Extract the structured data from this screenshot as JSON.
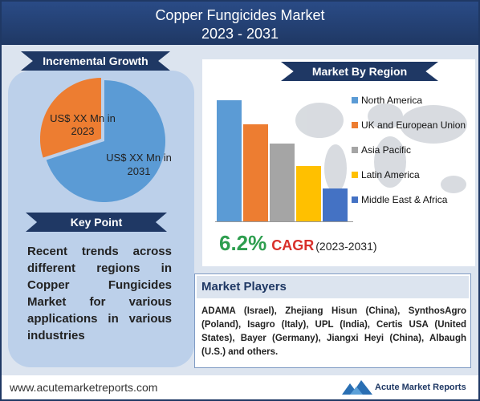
{
  "header": {
    "title_line1": "Copper Fungicides Market",
    "title_line2": "2023 - 2031"
  },
  "incremental_growth": {
    "label": "Incremental Growth",
    "slice_2023_label": "US$ XX Mn in 2023",
    "slice_2031_label": "US$ XX Mn in 2031"
  },
  "market_by_region": {
    "label": "Market By Region",
    "regions": [
      "North America",
      "UK and European Union",
      "Asia Pacific",
      "Latin America",
      "Middle East & Africa"
    ],
    "colors": [
      "#5b9bd5",
      "#ed7d31",
      "#a5a5a5",
      "#ffc000",
      "#4472c4"
    ]
  },
  "key_point": {
    "label": "Key Point",
    "text": "Recent trends across different regions in Copper Fungicides Market for various applications in various industries"
  },
  "cagr": {
    "value": "6.2%",
    "label": "CAGR",
    "years": "(2023-2031)"
  },
  "market_players": {
    "label": "Market Players",
    "text": "ADAMA (Israel), Zhejiang Hisun (China), SynthosAgro (Poland), Isagro (Italy), UPL (India), Certis USA (United States), Bayer (Germany), Jiangxi Heyi (China), Albaugh (U.S.) and others."
  },
  "footer": {
    "url": "www.acutemarketreports.com",
    "brand": "Acute Market Reports"
  },
  "chart_data": [
    {
      "type": "pie",
      "labels": [
        "US$ XX Mn in 2023",
        "US$ XX Mn in 2031"
      ],
      "values": [
        30,
        70
      ],
      "colors": [
        "#ed7d31",
        "#5b9bd5"
      ]
    },
    {
      "type": "bar",
      "categories": [
        "North America",
        "UK and European Union",
        "Asia Pacific",
        "Latin America",
        "Middle East & Africa"
      ],
      "values": [
        100,
        80,
        64,
        46,
        27
      ],
      "colors": [
        "#5b9bd5",
        "#ed7d31",
        "#a5a5a5",
        "#ffc000",
        "#4472c4"
      ],
      "legend": "right"
    }
  ]
}
